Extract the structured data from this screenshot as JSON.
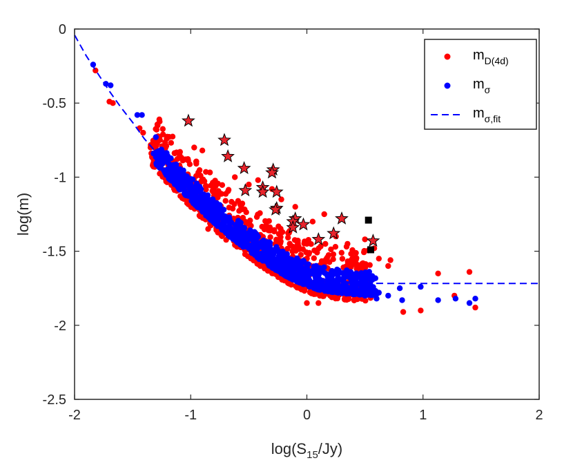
{
  "chart_data": {
    "type": "scatter",
    "title": "",
    "xlabel": {
      "prefix": "log(S",
      "sub": "15",
      "suffix": "/Jy)"
    },
    "ylabel": "log(m)",
    "xlim": [
      -2,
      2
    ],
    "ylim": [
      -2.5,
      0
    ],
    "xticks": [
      -2,
      -1,
      0,
      1,
      2
    ],
    "xtick_labels": [
      "-2",
      "-1",
      "0",
      "1",
      "2"
    ],
    "yticks": [
      0,
      -0.5,
      -1,
      -1.5,
      -2,
      -2.5
    ],
    "ytick_labels": [
      "0",
      "-0.5",
      "-1",
      "-1.5",
      "-2",
      "-2.5"
    ],
    "grid": false,
    "legend_position": "top-right",
    "colors": {
      "red": "#ff0000",
      "blue": "#0000ff",
      "black": "#000000",
      "star_fill": "#e8242c"
    },
    "legend": [
      {
        "base": "m",
        "sub": "D(4d)",
        "marker": "dot",
        "color": "#ff0000"
      },
      {
        "base": "m",
        "sub": "σ",
        "marker": "dot",
        "color": "#0000ff"
      },
      {
        "base": "m",
        "sub": "σ,fit",
        "marker": "dashed-line",
        "color": "#0000ff"
      }
    ],
    "fit_line": {
      "name": "m_σ,fit",
      "x": [
        -2.0,
        -1.9,
        -1.8,
        -1.7,
        -1.6,
        -1.5,
        -1.4,
        -1.3,
        -1.2,
        -1.1,
        -1.0,
        -0.9,
        -0.8,
        -0.7,
        -0.6,
        -0.5,
        -0.4,
        -0.3,
        -0.2,
        -0.1,
        0.0,
        0.1,
        0.2,
        0.3,
        0.4,
        0.5,
        0.6,
        0.8,
        1.0,
        1.5,
        2.0
      ],
      "y": [
        -0.04,
        -0.18,
        -0.3,
        -0.42,
        -0.53,
        -0.63,
        -0.74,
        -0.83,
        -0.92,
        -1.0,
        -1.08,
        -1.16,
        -1.23,
        -1.3,
        -1.36,
        -1.42,
        -1.48,
        -1.53,
        -1.58,
        -1.62,
        -1.655,
        -1.68,
        -1.695,
        -1.705,
        -1.712,
        -1.715,
        -1.717,
        -1.718,
        -1.718,
        -1.718,
        -1.718
      ]
    },
    "series": [
      {
        "name": "m_D(4d)",
        "marker": "dot",
        "color": "#ff0000",
        "band": {
          "x_from": -1.35,
          "x_to": 0.55,
          "count": 720,
          "offset_low": -0.12,
          "offset_high": 0.24
        },
        "points": [
          [
            -1.82,
            -0.28
          ],
          [
            -1.7,
            -0.49
          ],
          [
            -1.67,
            -0.5
          ],
          [
            -1.44,
            -0.67
          ],
          [
            -1.41,
            -0.7
          ],
          [
            -1.27,
            -0.61
          ],
          [
            -0.97,
            -0.8
          ],
          [
            -0.9,
            -0.82
          ],
          [
            -0.7,
            -1.16
          ],
          [
            -0.62,
            -1.0
          ],
          [
            -0.5,
            -1.05
          ],
          [
            -0.42,
            -1.02
          ],
          [
            -0.3,
            -1.08
          ],
          [
            -0.22,
            -1.15
          ],
          [
            -0.1,
            -1.2
          ],
          [
            0.05,
            -1.3
          ],
          [
            0.15,
            -1.25
          ],
          [
            0.25,
            -1.4
          ],
          [
            0.35,
            -1.45
          ],
          [
            0.5,
            -1.42
          ],
          [
            0.58,
            -1.48
          ],
          [
            0.62,
            -1.55
          ],
          [
            0.7,
            -1.6
          ],
          [
            0.72,
            -1.56
          ],
          [
            0.55,
            -1.7
          ],
          [
            0.45,
            -1.8
          ],
          [
            0.3,
            -1.75
          ],
          [
            0.1,
            -1.85
          ],
          [
            0.0,
            -1.85
          ],
          [
            0.83,
            -1.91
          ],
          [
            0.98,
            -1.9
          ],
          [
            1.13,
            -1.65
          ],
          [
            1.27,
            -1.8
          ],
          [
            1.4,
            -1.64
          ],
          [
            1.45,
            -1.88
          ],
          [
            -0.85,
            -1.35
          ],
          [
            -0.6,
            -1.45
          ],
          [
            -0.4,
            -1.6
          ],
          [
            -0.2,
            -1.65
          ],
          [
            0.2,
            -1.8
          ]
        ]
      },
      {
        "name": "m_σ",
        "marker": "dot",
        "color": "#0000ff",
        "band": {
          "x_from": -1.3,
          "x_to": 0.6,
          "count": 900,
          "offset_low": -0.08,
          "offset_high": 0.08
        },
        "points": [
          [
            -1.84,
            -0.24
          ],
          [
            -1.73,
            -0.37
          ],
          [
            -1.69,
            -0.38
          ],
          [
            -1.46,
            -0.58
          ],
          [
            -1.42,
            -0.58
          ],
          [
            -1.32,
            -0.84
          ],
          [
            -1.3,
            -0.73
          ],
          [
            0.62,
            -1.78
          ],
          [
            0.7,
            -1.8
          ],
          [
            0.82,
            -1.83
          ],
          [
            0.98,
            -1.74
          ],
          [
            1.13,
            -1.83
          ],
          [
            1.28,
            -1.82
          ],
          [
            1.4,
            -1.85
          ],
          [
            1.45,
            -1.82
          ],
          [
            0.8,
            -1.75
          ],
          [
            0.6,
            -1.82
          ],
          [
            0.5,
            -1.8
          ]
        ]
      },
      {
        "name": "stars",
        "marker": "star",
        "color": "#e8242c",
        "points": [
          [
            -1.02,
            -0.62
          ],
          [
            -0.71,
            -0.75
          ],
          [
            -0.68,
            -0.86
          ],
          [
            -0.54,
            -0.94
          ],
          [
            -0.29,
            -0.95
          ],
          [
            -0.3,
            -0.97
          ],
          [
            -0.53,
            -1.09
          ],
          [
            -0.38,
            -1.07
          ],
          [
            -0.38,
            -1.1
          ],
          [
            -0.26,
            -1.1
          ],
          [
            -0.26,
            -1.21
          ],
          [
            -0.27,
            -1.22
          ],
          [
            -0.1,
            -1.28
          ],
          [
            -0.12,
            -1.3
          ],
          [
            -0.12,
            -1.34
          ],
          [
            -0.03,
            -1.32
          ],
          [
            0.3,
            -1.28
          ],
          [
            0.23,
            -1.38
          ],
          [
            0.1,
            -1.42
          ],
          [
            0.57,
            -1.43
          ]
        ]
      },
      {
        "name": "squares",
        "marker": "square",
        "color": "#000000",
        "points": [
          [
            0.53,
            -1.29
          ],
          [
            0.55,
            -1.49
          ]
        ]
      }
    ]
  }
}
